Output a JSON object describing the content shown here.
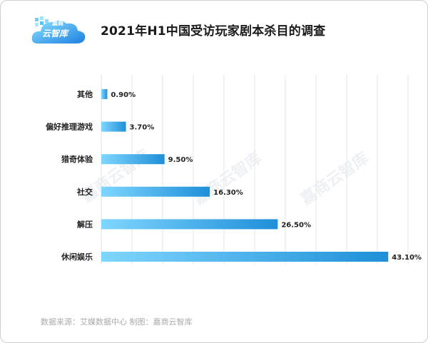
{
  "logo": {
    "small": "嘉商",
    "big": "云智库"
  },
  "title": "2021年H1中国受访玩家剧本杀目的调查",
  "source": "数据来源：艾媒数据中心   制图：嘉商云智库",
  "watermark": "嘉商云智库",
  "colors": {
    "bar_start": "#7fd6ff",
    "bar_end": "#1f8fd8",
    "grid": "#e6e6e6"
  },
  "chart_data": {
    "type": "bar",
    "orientation": "horizontal",
    "title": "2021年H1中国受访玩家剧本杀目的调查",
    "categories": [
      "其他",
      "偏好推理游戏",
      "猎奇体验",
      "社交",
      "解压",
      "休闲娱乐"
    ],
    "values": [
      0.9,
      3.7,
      9.5,
      16.3,
      26.5,
      43.1
    ],
    "value_labels": [
      "0.90%",
      "3.70%",
      "9.50%",
      "16.30%",
      "26.50%",
      "43.10%"
    ],
    "xlim": [
      0,
      45
    ],
    "grid": true,
    "legend": "none"
  }
}
